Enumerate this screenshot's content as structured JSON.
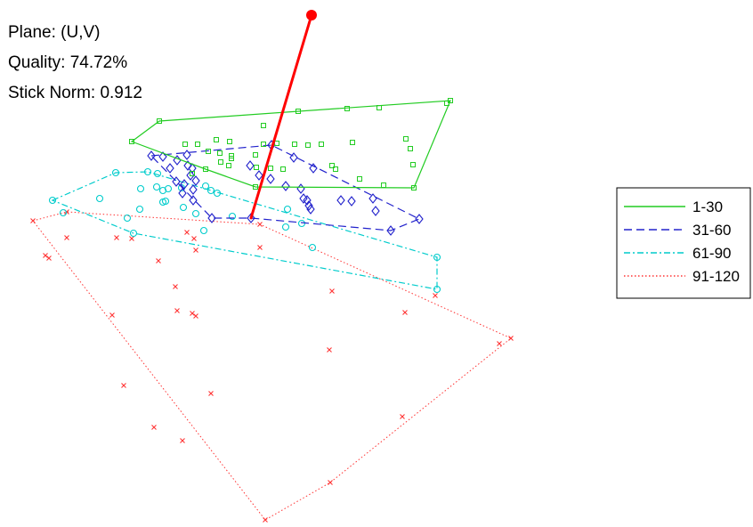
{
  "info": {
    "plane": "Plane: (U,V)",
    "quality": "Quality: 74.72%",
    "stick_norm": "Stick Norm: 0.912"
  },
  "chart_data": {
    "type": "scatter",
    "axes": "hidden",
    "grid": false,
    "legend_position": "right",
    "stick": {
      "color": "#ff0000",
      "from": [
        282,
        245
      ],
      "to": [
        350,
        17
      ]
    },
    "series": [
      {
        "name": "1-30",
        "color": "#22cc22",
        "line_style": "solid",
        "marker": "square",
        "hull": [
          [
            148,
            159
          ],
          [
            179,
            136
          ],
          [
            506,
            113
          ],
          [
            465,
            211
          ],
          [
            287,
            210
          ],
          [
            231,
            190
          ]
        ],
        "points": [
          [
            179,
            136
          ],
          [
            148,
            159
          ],
          [
            296,
            141
          ],
          [
            335,
            125
          ],
          [
            390,
            122
          ],
          [
            426,
            121
          ],
          [
            502,
            116
          ],
          [
            506,
            113
          ],
          [
            208,
            162
          ],
          [
            222,
            162
          ],
          [
            243,
            157
          ],
          [
            258,
            159
          ],
          [
            234,
            170
          ],
          [
            247,
            172
          ],
          [
            260,
            175
          ],
          [
            260,
            178
          ],
          [
            296,
            162
          ],
          [
            311,
            161
          ],
          [
            331,
            162
          ],
          [
            346,
            163
          ],
          [
            361,
            162
          ],
          [
            396,
            160
          ],
          [
            456,
            156
          ],
          [
            461,
            167
          ],
          [
            464,
            185
          ],
          [
            287,
            174
          ],
          [
            288,
            188
          ],
          [
            304,
            189
          ],
          [
            318,
            190
          ],
          [
            373,
            186
          ],
          [
            377,
            190
          ],
          [
            404,
            201
          ],
          [
            431,
            208
          ],
          [
            287,
            210
          ],
          [
            465,
            211
          ],
          [
            216,
            195
          ],
          [
            231,
            190
          ],
          [
            248,
            182
          ],
          [
            257,
            186
          ]
        ]
      },
      {
        "name": "31-60",
        "color": "#2222cc",
        "line_style": "dashed",
        "marker": "diamond",
        "hull": [
          [
            170,
            175
          ],
          [
            305,
            163
          ],
          [
            471,
            246
          ],
          [
            439,
            259
          ],
          [
            282,
            245
          ],
          [
            238,
            245
          ]
        ],
        "points": [
          [
            170,
            175
          ],
          [
            183,
            176
          ],
          [
            210,
            174
          ],
          [
            305,
            163
          ],
          [
            330,
            177
          ],
          [
            352,
            189
          ],
          [
            191,
            189
          ],
          [
            199,
            180
          ],
          [
            211,
            186
          ],
          [
            216,
            189
          ],
          [
            214,
            197
          ],
          [
            220,
            203
          ],
          [
            198,
            204
          ],
          [
            207,
            207
          ],
          [
            217,
            213
          ],
          [
            205,
            217
          ],
          [
            217,
            225
          ],
          [
            238,
            245
          ],
          [
            282,
            245
          ],
          [
            281,
            186
          ],
          [
            291,
            197
          ],
          [
            304,
            201
          ],
          [
            321,
            209
          ],
          [
            338,
            212
          ],
          [
            341,
            223
          ],
          [
            345,
            225
          ],
          [
            347,
            231
          ],
          [
            349,
            235
          ],
          [
            383,
            225
          ],
          [
            395,
            226
          ],
          [
            419,
            223
          ],
          [
            422,
            237
          ],
          [
            439,
            259
          ],
          [
            471,
            246
          ]
        ]
      },
      {
        "name": "61-90",
        "color": "#00cccc",
        "line_style": "dashdot",
        "marker": "circle",
        "hull": [
          [
            59,
            225
          ],
          [
            130,
            194
          ],
          [
            166,
            193
          ],
          [
            491,
            289
          ],
          [
            491,
            325
          ],
          [
            150,
            262
          ]
        ],
        "points": [
          [
            59,
            225
          ],
          [
            71,
            239
          ],
          [
            112,
            223
          ],
          [
            130,
            194
          ],
          [
            166,
            193
          ],
          [
            158,
            212
          ],
          [
            177,
            195
          ],
          [
            176,
            210
          ],
          [
            183,
            214
          ],
          [
            189,
            212
          ],
          [
            183,
            227
          ],
          [
            186,
            226
          ],
          [
            204,
            211
          ],
          [
            231,
            209
          ],
          [
            237,
            214
          ],
          [
            244,
            217
          ],
          [
            206,
            233
          ],
          [
            220,
            240
          ],
          [
            143,
            245
          ],
          [
            150,
            262
          ],
          [
            157,
            235
          ],
          [
            261,
            243
          ],
          [
            229,
            259
          ],
          [
            323,
            235
          ],
          [
            321,
            255
          ],
          [
            339,
            251
          ],
          [
            351,
            278
          ],
          [
            491,
            289
          ],
          [
            491,
            325
          ]
        ]
      },
      {
        "name": "91-120",
        "color": "#ff3333",
        "line_style": "dotted",
        "marker": "x",
        "hull": [
          [
            37,
            248
          ],
          [
            75,
            238
          ],
          [
            292,
            252
          ],
          [
            574,
            380
          ],
          [
            371,
            542
          ],
          [
            298,
            584
          ]
        ],
        "points": [
          [
            37,
            248
          ],
          [
            75,
            238
          ],
          [
            75,
            267
          ],
          [
            51,
            287
          ],
          [
            55,
            290
          ],
          [
            131,
            267
          ],
          [
            148,
            268
          ],
          [
            210,
            261
          ],
          [
            218,
            268
          ],
          [
            220,
            281
          ],
          [
            292,
            252
          ],
          [
            292,
            278
          ],
          [
            178,
            293
          ],
          [
            197,
            322
          ],
          [
            199,
            349
          ],
          [
            216,
            352
          ],
          [
            220,
            355
          ],
          [
            126,
            354
          ],
          [
            373,
            327
          ],
          [
            455,
            351
          ],
          [
            489,
            332
          ],
          [
            574,
            380
          ],
          [
            561,
            386
          ],
          [
            370,
            393
          ],
          [
            139,
            433
          ],
          [
            237,
            442
          ],
          [
            452,
            468
          ],
          [
            173,
            480
          ],
          [
            205,
            495
          ],
          [
            371,
            542
          ],
          [
            298,
            584
          ]
        ]
      }
    ]
  }
}
